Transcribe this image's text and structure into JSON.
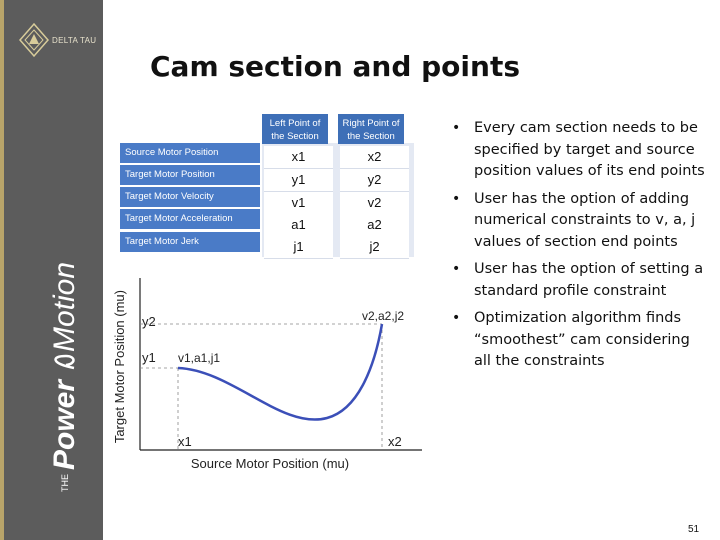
{
  "slide": {
    "title": "Cam section and points",
    "page_number": "51"
  },
  "sidebar": {
    "logo_text": "DELTA TAU",
    "brand_prefix": "THE",
    "brand_main": "Power",
    "brand_suffix": "Motion"
  },
  "table": {
    "col_headers": [
      "Left Point of the Section",
      "Right Point of the Section"
    ],
    "rows": [
      {
        "label": "Source Motor Position",
        "left": "x1",
        "right": "x2"
      },
      {
        "label": "Target Motor Position",
        "left": "y1",
        "right": "y2"
      },
      {
        "label": "Target Motor Velocity",
        "left": "v1",
        "right": "v2"
      },
      {
        "label": "Target Motor Acceleration",
        "left": "a1",
        "right": "a2"
      },
      {
        "label": "Target Motor Jerk",
        "left": "j1",
        "right": "j2"
      }
    ]
  },
  "plot": {
    "ylabel": "Target Motor Position (mu)",
    "xlabel": "Source Motor Position (mu)",
    "y2": "y2",
    "y1": "y1",
    "x1": "x1",
    "x2": "x2",
    "left_point_label": "v1,a1,j1",
    "right_point_label": "v2,a2,j2"
  },
  "bullets": [
    "Every cam section needs to be specified by target and source position values of its end points",
    "User has the option of adding numerical constraints to v, a, j values of section end points",
    "User has the option of setting a standard profile constraint",
    "Optimization algorithm finds “smoothest” cam considering all the constraints"
  ],
  "colors": {
    "sidebar": "#5c5c5c",
    "accent_gold": "#b8a46a",
    "table_blue": "#4a7bc7",
    "curve_blue": "#3b4fb8"
  }
}
